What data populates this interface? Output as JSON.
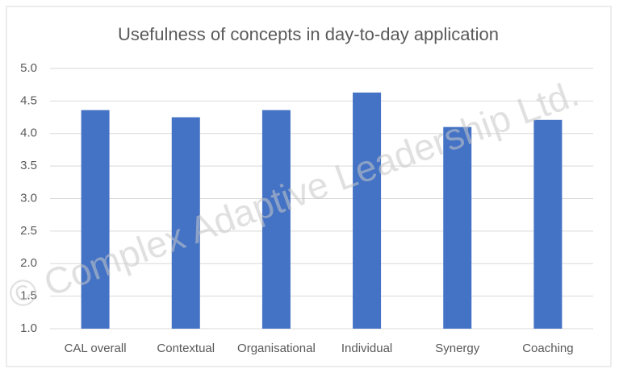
{
  "chart_data": {
    "type": "bar",
    "title": "Usefulness of concepts in day-to-day application",
    "watermark": "© Complex Adaptive Leadership Ltd.",
    "categories": [
      "CAL overall",
      "Contextual",
      "Organisational",
      "Individual",
      "Synergy",
      "Coaching"
    ],
    "values": [
      4.36,
      4.25,
      4.36,
      4.63,
      4.1,
      4.21
    ],
    "color": "#4472c4",
    "ylim": [
      1,
      5
    ],
    "yticks": [
      {
        "value": 1,
        "label": "1.0"
      },
      1.5,
      {
        "value": 2,
        "label": "2.0"
      },
      2.5,
      {
        "value": 3,
        "label": "3.0"
      },
      3.5,
      {
        "value": 4,
        "label": "4.0"
      },
      4.5,
      {
        "value": 5,
        "label": "5.0"
      }
    ],
    "grid": true
  }
}
